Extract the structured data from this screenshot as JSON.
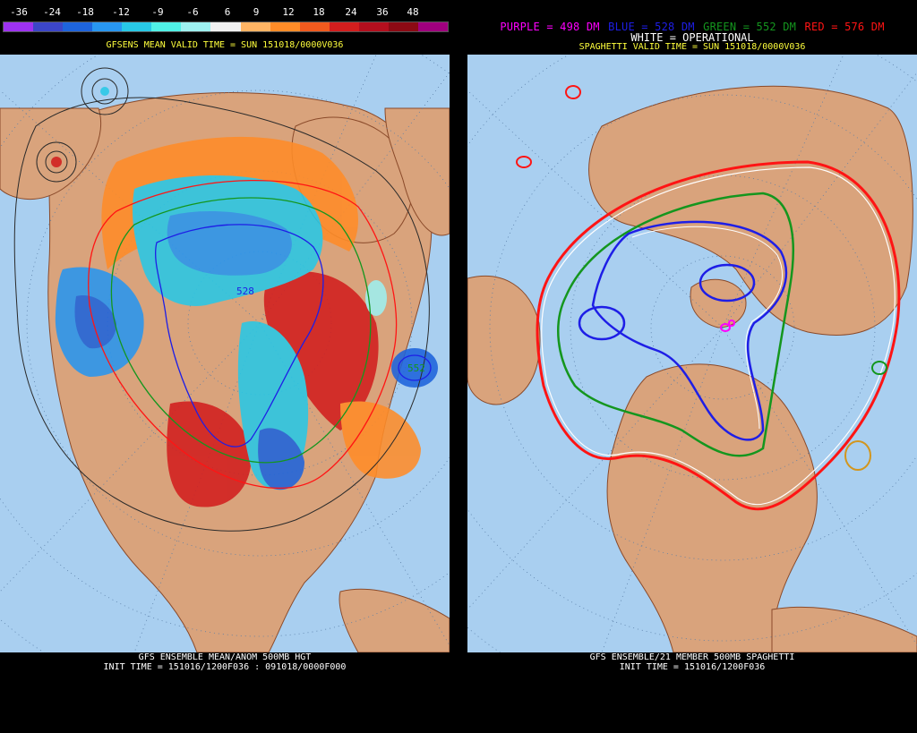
{
  "left": {
    "colorbar": {
      "labels": [
        "-36",
        "-24",
        "-18",
        "-12",
        "-9",
        "-6",
        "6",
        "9",
        "12",
        "18",
        "24",
        "36",
        "48"
      ],
      "colors": [
        "#9d32f0",
        "#3c46c8",
        "#1e64dc",
        "#2896f0",
        "#28c8e6",
        "#50f0e6",
        "#9ef0f0",
        "#f0f0f0",
        "#ffb464",
        "#ff8c28",
        "#f05a1e",
        "#d21e1e",
        "#b40f1e",
        "#8c0a14",
        "#a0007e"
      ]
    },
    "title": "GFSENS MEAN VALID TIME = SUN 151018/0000V036",
    "contour_label_528": "528",
    "contour_label_552": "552",
    "footer": {
      "line1": "GFS ENSEMBLE MEAN/ANOM 500MB HGT",
      "line2": "INIT TIME = 151016/1200F036 : 091018/0000F000"
    }
  },
  "right": {
    "legend": {
      "purple": "PURPLE = 498 DM",
      "blue": "BLUE = 528 DM",
      "green": "GREEN = 552 DM",
      "red": "RED = 576 DM",
      "white": "WHITE = OPERATIONAL"
    },
    "title": "SPAGHETTI VALID TIME = SUN 151018/0000V036",
    "footer": {
      "line1": "GFS ENSEMBLE/21 MEMBER 500MB SPAGHETTI",
      "line2": "INIT TIME = 151016/1200F036"
    }
  },
  "colors": {
    "ocean": "#a9cff0",
    "land": "#d9a37c",
    "purple": "#ff00ff",
    "blue": "#1e1ee6",
    "green": "#14961e",
    "red": "#ff1414",
    "yellow_title": "#ffff3c"
  }
}
